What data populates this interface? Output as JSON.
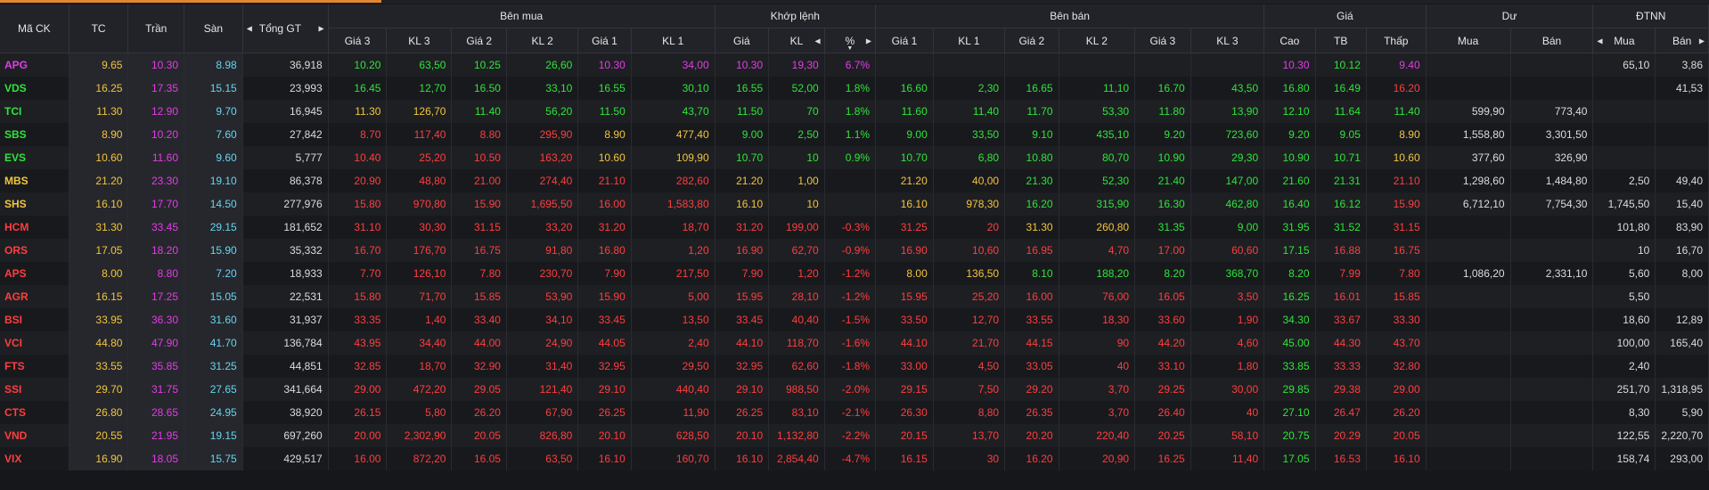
{
  "header": {
    "symbol": "Mã CK",
    "ref": "TC",
    "ceil": "Trần",
    "floor": "Sàn",
    "total": "Tổng GT",
    "buy_group": "Bên mua",
    "match_group": "Khớp lệnh",
    "sell_group": "Bên bán",
    "price_group": "Giá",
    "remain_group": "Dư",
    "foreign_group": "ĐTNN",
    "buy_cols": [
      "Giá 3",
      "KL 3",
      "Giá 2",
      "KL 2",
      "Giá 1",
      "KL 1"
    ],
    "match_cols": [
      "Giá",
      "KL",
      "%"
    ],
    "sell_cols": [
      "Giá 1",
      "KL 1",
      "Giá 2",
      "KL 2",
      "Giá 3",
      "KL 3"
    ],
    "price_cols": [
      "Cao",
      "TB",
      "Thấp"
    ],
    "remain_cols": [
      "Mua",
      "Bán"
    ],
    "foreign_cols": [
      "Mua",
      "Bán"
    ]
  },
  "colors": {
    "up": "#2fe43a",
    "down": "#ff3e3e",
    "reference": "#f2c53d",
    "ceiling": "#e33ce8",
    "floor": "#63d6f2",
    "accent": "#e3862e"
  },
  "rows": [
    {
      "c": [
        "APG",
        "9.65",
        "10.30",
        "8.98",
        "36,918",
        "10.20",
        "63,50",
        "10.25",
        "26,60",
        "10.30",
        "34,00",
        "10.30",
        "19,30",
        "6.7%",
        "",
        "",
        "",
        "",
        "",
        "",
        "10.30",
        "10.12",
        "9.40",
        "",
        "",
        "65,10",
        "3,86"
      ],
      "k": [
        "ce",
        "r",
        "ce",
        "f",
        "w",
        "u",
        "u",
        "u",
        "u",
        "ce",
        "ce",
        "ce",
        "ce",
        "ce",
        "",
        "",
        "",
        "",
        "",
        "",
        "ce",
        "u",
        "ce",
        "w",
        "w",
        "w",
        "w"
      ]
    },
    {
      "c": [
        "VDS",
        "16.25",
        "17.35",
        "15.15",
        "23,993",
        "16.45",
        "12,70",
        "16.50",
        "33,10",
        "16.55",
        "30,10",
        "16.55",
        "52,00",
        "1.8%",
        "16.60",
        "2,30",
        "16.65",
        "11,10",
        "16.70",
        "43,50",
        "16.80",
        "16.49",
        "16.20",
        "",
        "",
        "",
        "41,53"
      ],
      "k": [
        "u",
        "r",
        "ce",
        "f",
        "w",
        "u",
        "u",
        "u",
        "u",
        "u",
        "u",
        "u",
        "u",
        "u",
        "u",
        "u",
        "u",
        "u",
        "u",
        "u",
        "u",
        "u",
        "d",
        "w",
        "w",
        "w",
        "w"
      ]
    },
    {
      "c": [
        "TCI",
        "11.30",
        "12.90",
        "9.70",
        "16,945",
        "11.30",
        "126,70",
        "11.40",
        "56,20",
        "11.50",
        "43,70",
        "11.50",
        "70",
        "1.8%",
        "11.60",
        "11,40",
        "11.70",
        "53,30",
        "11.80",
        "13,90",
        "12.10",
        "11.64",
        "11.40",
        "599,90",
        "773,40",
        "",
        ""
      ],
      "k": [
        "u",
        "r",
        "ce",
        "f",
        "w",
        "r",
        "r",
        "u",
        "u",
        "u",
        "u",
        "u",
        "u",
        "u",
        "u",
        "u",
        "u",
        "u",
        "u",
        "u",
        "u",
        "u",
        "u",
        "w",
        "w",
        "w",
        "w"
      ]
    },
    {
      "c": [
        "SBS",
        "8.90",
        "10.20",
        "7.60",
        "27,842",
        "8.70",
        "117,40",
        "8.80",
        "295,90",
        "8.90",
        "477,40",
        "9.00",
        "2,50",
        "1.1%",
        "9.00",
        "33,50",
        "9.10",
        "435,10",
        "9.20",
        "723,60",
        "9.20",
        "9.05",
        "8.90",
        "1,558,80",
        "3,301,50",
        "",
        ""
      ],
      "k": [
        "u",
        "r",
        "ce",
        "f",
        "w",
        "d",
        "d",
        "d",
        "d",
        "r",
        "r",
        "u",
        "u",
        "u",
        "u",
        "u",
        "u",
        "u",
        "u",
        "u",
        "u",
        "u",
        "r",
        "w",
        "w",
        "w",
        "w"
      ]
    },
    {
      "c": [
        "EVS",
        "10.60",
        "11.60",
        "9.60",
        "5,777",
        "10.40",
        "25,20",
        "10.50",
        "163,20",
        "10.60",
        "109,90",
        "10.70",
        "10",
        "0.9%",
        "10.70",
        "6,80",
        "10.80",
        "80,70",
        "10.90",
        "29,30",
        "10.90",
        "10.71",
        "10.60",
        "377,60",
        "326,90",
        "",
        ""
      ],
      "k": [
        "u",
        "r",
        "ce",
        "f",
        "w",
        "d",
        "d",
        "d",
        "d",
        "r",
        "r",
        "u",
        "u",
        "u",
        "u",
        "u",
        "u",
        "u",
        "u",
        "u",
        "u",
        "u",
        "r",
        "w",
        "w",
        "w",
        "w"
      ]
    },
    {
      "c": [
        "MBS",
        "21.20",
        "23.30",
        "19.10",
        "86,378",
        "20.90",
        "48,80",
        "21.00",
        "274,40",
        "21.10",
        "282,60",
        "21.20",
        "1,00",
        "",
        "21.20",
        "40,00",
        "21.30",
        "52,30",
        "21.40",
        "147,00",
        "21.60",
        "21.31",
        "21.10",
        "1,298,60",
        "1,484,80",
        "2,50",
        "49,40"
      ],
      "k": [
        "r",
        "r",
        "ce",
        "f",
        "w",
        "d",
        "d",
        "d",
        "d",
        "d",
        "d",
        "r",
        "r",
        "r",
        "r",
        "r",
        "u",
        "u",
        "u",
        "u",
        "u",
        "u",
        "d",
        "w",
        "w",
        "w",
        "w"
      ]
    },
    {
      "c": [
        "SHS",
        "16.10",
        "17.70",
        "14.50",
        "277,976",
        "15.80",
        "970,80",
        "15.90",
        "1,695,50",
        "16.00",
        "1,583,80",
        "16.10",
        "10",
        "",
        "16.10",
        "978,30",
        "16.20",
        "315,90",
        "16.30",
        "462,80",
        "16.40",
        "16.12",
        "15.90",
        "6,712,10",
        "7,754,30",
        "1,745,50",
        "15,40"
      ],
      "k": [
        "r",
        "r",
        "ce",
        "f",
        "w",
        "d",
        "d",
        "d",
        "d",
        "d",
        "d",
        "r",
        "r",
        "r",
        "r",
        "r",
        "u",
        "u",
        "u",
        "u",
        "u",
        "u",
        "d",
        "w",
        "w",
        "w",
        "w"
      ]
    },
    {
      "c": [
        "HCM",
        "31.30",
        "33.45",
        "29.15",
        "181,652",
        "31.10",
        "30,30",
        "31.15",
        "33,20",
        "31.20",
        "18,70",
        "31.20",
        "199,00",
        "-0.3%",
        "31.25",
        "20",
        "31.30",
        "260,80",
        "31.35",
        "9,00",
        "31.95",
        "31.52",
        "31.15",
        "",
        "",
        "101,80",
        "83,90"
      ],
      "k": [
        "d",
        "r",
        "ce",
        "f",
        "w",
        "d",
        "d",
        "d",
        "d",
        "d",
        "d",
        "d",
        "d",
        "d",
        "d",
        "d",
        "r",
        "r",
        "u",
        "u",
        "u",
        "u",
        "d",
        "w",
        "w",
        "w",
        "w"
      ]
    },
    {
      "c": [
        "ORS",
        "17.05",
        "18.20",
        "15.90",
        "35,332",
        "16.70",
        "176,70",
        "16.75",
        "91,80",
        "16.80",
        "1,20",
        "16.90",
        "62,70",
        "-0.9%",
        "16.90",
        "10,60",
        "16.95",
        "4,70",
        "17.00",
        "60,60",
        "17.15",
        "16.88",
        "16.75",
        "",
        "",
        "10",
        "16,70"
      ],
      "k": [
        "d",
        "r",
        "ce",
        "f",
        "w",
        "d",
        "d",
        "d",
        "d",
        "d",
        "d",
        "d",
        "d",
        "d",
        "d",
        "d",
        "d",
        "d",
        "d",
        "d",
        "u",
        "d",
        "d",
        "w",
        "w",
        "w",
        "w"
      ]
    },
    {
      "c": [
        "APS",
        "8.00",
        "8.80",
        "7.20",
        "18,933",
        "7.70",
        "126,10",
        "7.80",
        "230,70",
        "7.90",
        "217,50",
        "7.90",
        "1,20",
        "-1.2%",
        "8.00",
        "136,50",
        "8.10",
        "188,20",
        "8.20",
        "368,70",
        "8.20",
        "7.99",
        "7.80",
        "1,086,20",
        "2,331,10",
        "5,60",
        "8,00"
      ],
      "k": [
        "d",
        "r",
        "ce",
        "f",
        "w",
        "d",
        "d",
        "d",
        "d",
        "d",
        "d",
        "d",
        "d",
        "d",
        "r",
        "r",
        "u",
        "u",
        "u",
        "u",
        "u",
        "d",
        "d",
        "w",
        "w",
        "w",
        "w"
      ]
    },
    {
      "c": [
        "AGR",
        "16.15",
        "17.25",
        "15.05",
        "22,531",
        "15.80",
        "71,70",
        "15.85",
        "53,90",
        "15.90",
        "5,00",
        "15.95",
        "28,10",
        "-1.2%",
        "15.95",
        "25,20",
        "16.00",
        "76,00",
        "16.05",
        "3,50",
        "16.25",
        "16.01",
        "15.85",
        "",
        "",
        "5,50",
        ""
      ],
      "k": [
        "d",
        "r",
        "ce",
        "f",
        "w",
        "d",
        "d",
        "d",
        "d",
        "d",
        "d",
        "d",
        "d",
        "d",
        "d",
        "d",
        "d",
        "d",
        "d",
        "d",
        "u",
        "d",
        "d",
        "w",
        "w",
        "w",
        "w"
      ]
    },
    {
      "c": [
        "BSI",
        "33.95",
        "36.30",
        "31.60",
        "31,937",
        "33.35",
        "1,40",
        "33.40",
        "34,10",
        "33.45",
        "13,50",
        "33.45",
        "40,40",
        "-1.5%",
        "33.50",
        "12,70",
        "33.55",
        "18,30",
        "33.60",
        "1,90",
        "34.30",
        "33.67",
        "33.30",
        "",
        "",
        "18,60",
        "12,89"
      ],
      "k": [
        "d",
        "r",
        "ce",
        "f",
        "w",
        "d",
        "d",
        "d",
        "d",
        "d",
        "d",
        "d",
        "d",
        "d",
        "d",
        "d",
        "d",
        "d",
        "d",
        "d",
        "u",
        "d",
        "d",
        "w",
        "w",
        "w",
        "w"
      ]
    },
    {
      "c": [
        "VCI",
        "44.80",
        "47.90",
        "41.70",
        "136,784",
        "43.95",
        "34,40",
        "44.00",
        "24,90",
        "44.05",
        "2,40",
        "44.10",
        "118,70",
        "-1.6%",
        "44.10",
        "21,70",
        "44.15",
        "90",
        "44.20",
        "4,60",
        "45.00",
        "44.30",
        "43.70",
        "",
        "",
        "100,00",
        "165,40"
      ],
      "k": [
        "d",
        "r",
        "ce",
        "f",
        "w",
        "d",
        "d",
        "d",
        "d",
        "d",
        "d",
        "d",
        "d",
        "d",
        "d",
        "d",
        "d",
        "d",
        "d",
        "d",
        "u",
        "d",
        "d",
        "w",
        "w",
        "w",
        "w"
      ]
    },
    {
      "c": [
        "FTS",
        "33.55",
        "35.85",
        "31.25",
        "44,851",
        "32.85",
        "18,70",
        "32.90",
        "31,40",
        "32.95",
        "29,50",
        "32.95",
        "62,60",
        "-1.8%",
        "33.00",
        "4,50",
        "33.05",
        "40",
        "33.10",
        "1,80",
        "33.85",
        "33.33",
        "32.80",
        "",
        "",
        "2,40",
        ""
      ],
      "k": [
        "d",
        "r",
        "ce",
        "f",
        "w",
        "d",
        "d",
        "d",
        "d",
        "d",
        "d",
        "d",
        "d",
        "d",
        "d",
        "d",
        "d",
        "d",
        "d",
        "d",
        "u",
        "d",
        "d",
        "w",
        "w",
        "w",
        "w"
      ]
    },
    {
      "c": [
        "SSI",
        "29.70",
        "31.75",
        "27.65",
        "341,664",
        "29.00",
        "472,20",
        "29.05",
        "121,40",
        "29.10",
        "440,40",
        "29.10",
        "988,50",
        "-2.0%",
        "29.15",
        "7,50",
        "29.20",
        "3,70",
        "29.25",
        "30,00",
        "29.85",
        "29.38",
        "29.00",
        "",
        "",
        "251,70",
        "1,318,95"
      ],
      "k": [
        "d",
        "r",
        "ce",
        "f",
        "w",
        "d",
        "d",
        "d",
        "d",
        "d",
        "d",
        "d",
        "d",
        "d",
        "d",
        "d",
        "d",
        "d",
        "d",
        "d",
        "u",
        "d",
        "d",
        "w",
        "w",
        "w",
        "w"
      ]
    },
    {
      "c": [
        "CTS",
        "26.80",
        "28.65",
        "24.95",
        "38,920",
        "26.15",
        "5,80",
        "26.20",
        "67,90",
        "26.25",
        "11,90",
        "26.25",
        "83,10",
        "-2.1%",
        "26.30",
        "8,80",
        "26.35",
        "3,70",
        "26.40",
        "40",
        "27.10",
        "26.47",
        "26.20",
        "",
        "",
        "8,30",
        "5,90"
      ],
      "k": [
        "d",
        "r",
        "ce",
        "f",
        "w",
        "d",
        "d",
        "d",
        "d",
        "d",
        "d",
        "d",
        "d",
        "d",
        "d",
        "d",
        "d",
        "d",
        "d",
        "d",
        "u",
        "d",
        "d",
        "w",
        "w",
        "w",
        "w"
      ]
    },
    {
      "c": [
        "VND",
        "20.55",
        "21.95",
        "19.15",
        "697,260",
        "20.00",
        "2,302,90",
        "20.05",
        "826,80",
        "20.10",
        "628,50",
        "20.10",
        "1,132,80",
        "-2.2%",
        "20.15",
        "13,70",
        "20.20",
        "220,40",
        "20.25",
        "58,10",
        "20.75",
        "20.29",
        "20.05",
        "",
        "",
        "122,55",
        "2,220,70"
      ],
      "k": [
        "d",
        "r",
        "ce",
        "f",
        "w",
        "d",
        "d",
        "d",
        "d",
        "d",
        "d",
        "d",
        "d",
        "d",
        "d",
        "d",
        "d",
        "d",
        "d",
        "d",
        "u",
        "d",
        "d",
        "w",
        "w",
        "w",
        "w"
      ]
    },
    {
      "c": [
        "VIX",
        "16.90",
        "18.05",
        "15.75",
        "429,517",
        "16.00",
        "872,20",
        "16.05",
        "63,50",
        "16.10",
        "160,70",
        "16.10",
        "2,854,40",
        "-4.7%",
        "16.15",
        "30",
        "16.20",
        "20,90",
        "16.25",
        "11,40",
        "17.05",
        "16.53",
        "16.10",
        "",
        "",
        "158,74",
        "293,00"
      ],
      "k": [
        "d",
        "r",
        "ce",
        "f",
        "w",
        "d",
        "d",
        "d",
        "d",
        "d",
        "d",
        "d",
        "d",
        "d",
        "d",
        "d",
        "d",
        "d",
        "d",
        "d",
        "u",
        "d",
        "d",
        "w",
        "w",
        "w",
        "w"
      ]
    }
  ]
}
